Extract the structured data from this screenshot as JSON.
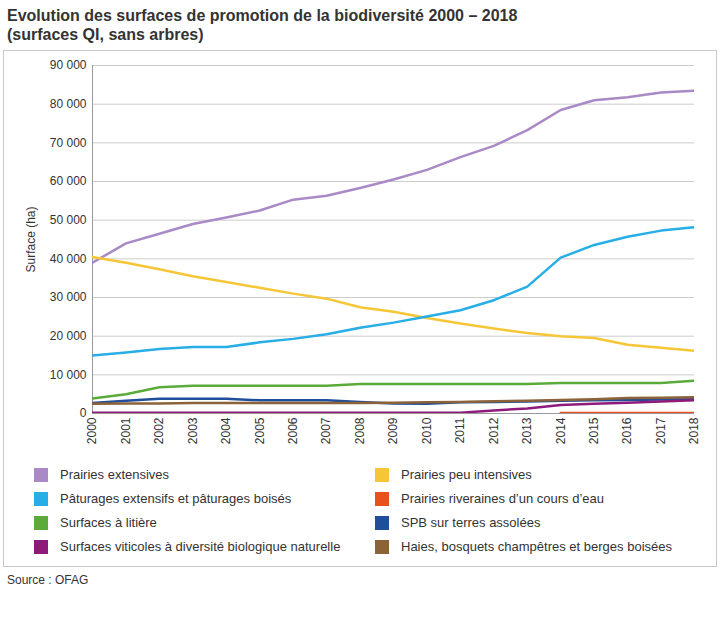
{
  "chart_data": {
    "type": "line",
    "title": "Evolution des surfaces de promotion de la biodiversité 2000 – 2018",
    "subtitle": "(surfaces QI, sans arbres)",
    "y_label": "Surface (ha)",
    "source": "Source : OFAG",
    "x": [
      2000,
      2001,
      2002,
      2003,
      2004,
      2005,
      2006,
      2007,
      2008,
      2009,
      2010,
      2011,
      2012,
      2013,
      2014,
      2015,
      2016,
      2017,
      2018
    ],
    "xlim": [
      2000,
      2018
    ],
    "xticks": [
      2000,
      2001,
      2002,
      2003,
      2004,
      2005,
      2006,
      2007,
      2008,
      2009,
      2010,
      2011,
      2012,
      2013,
      2014,
      2015,
      2016,
      2017,
      2018
    ],
    "ylim": [
      0,
      90000
    ],
    "yticks": [
      0,
      {
        "value": 10000,
        "label": "10 000"
      },
      {
        "value": 20000,
        "label": "20 000"
      },
      {
        "value": 30000,
        "label": "30 000"
      },
      {
        "value": 40000,
        "label": "40 000"
      },
      {
        "value": 50000,
        "label": "50 000"
      },
      {
        "value": 60000,
        "label": "60 000"
      },
      {
        "value": 70000,
        "label": "70 000"
      },
      {
        "value": 80000,
        "label": "80 000"
      },
      {
        "value": 90000,
        "label": "90 000"
      }
    ],
    "grid": true,
    "legend": "bottom",
    "series": [
      {
        "name": "Prairies extensives",
        "color": "#a98ac6",
        "values": [
          39000,
          44000,
          46500,
          49000,
          50700,
          52500,
          55300,
          56300,
          58300,
          60500,
          63000,
          66300,
          69200,
          73300,
          78500,
          81000,
          81800,
          83000,
          83500
        ]
      },
      {
        "name": "Prairies peu intensives",
        "color": "#f7c636",
        "values": [
          40500,
          39000,
          37300,
          35500,
          34000,
          32500,
          31000,
          29700,
          27500,
          26300,
          24700,
          23300,
          22000,
          20800,
          20000,
          19500,
          17800,
          17000,
          16200
        ]
      },
      {
        "name": "Pâturages extensifs et pâturages boisés",
        "color": "#27aee6",
        "values": [
          15000,
          15800,
          16700,
          17200,
          17200,
          18400,
          19300,
          20500,
          22200,
          23500,
          25100,
          26700,
          29300,
          32800,
          40300,
          43600,
          45700,
          47300,
          48200
        ]
      },
      {
        "name": "Prairies riveraines d’un cours d’eau",
        "color": "#e8501c",
        "values": [
          null,
          null,
          null,
          null,
          null,
          null,
          null,
          null,
          null,
          null,
          null,
          null,
          null,
          null,
          100,
          100,
          100,
          100,
          100
        ]
      },
      {
        "name": "Surfaces à litière",
        "color": "#5aab3a",
        "values": [
          3900,
          5000,
          6800,
          7200,
          7200,
          7200,
          7200,
          7200,
          7600,
          7600,
          7600,
          7600,
          7600,
          7600,
          7900,
          7900,
          7900,
          7900,
          8500
        ]
      },
      {
        "name": "SPB sur terres assolées",
        "color": "#1f4e9a",
        "values": [
          2700,
          3300,
          3800,
          3800,
          3800,
          3400,
          3400,
          3400,
          3000,
          2600,
          2500,
          2900,
          3000,
          3100,
          3300,
          3400,
          3500,
          3600,
          3700
        ]
      },
      {
        "name": "Surfaces viticoles à diversité biologique naturelle",
        "color": "#8e1b7c",
        "values": [
          200,
          200,
          200,
          200,
          200,
          200,
          200,
          200,
          200,
          200,
          200,
          200,
          800,
          1300,
          2200,
          2500,
          2800,
          3100,
          3400
        ]
      },
      {
        "name": "Haies, bosquets champêtres et berges boisées",
        "color": "#8c6239",
        "values": [
          2500,
          2600,
          2600,
          2700,
          2700,
          2700,
          2700,
          2700,
          2700,
          2800,
          2900,
          3000,
          3200,
          3300,
          3500,
          3700,
          4000,
          4100,
          4200
        ]
      }
    ]
  }
}
